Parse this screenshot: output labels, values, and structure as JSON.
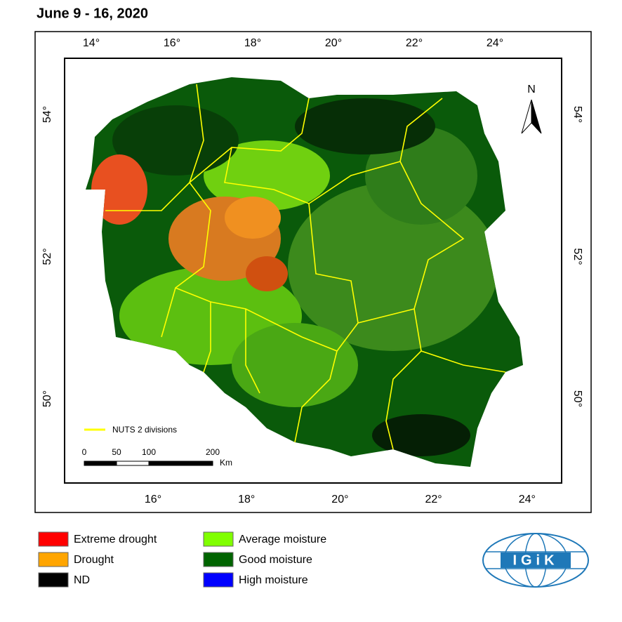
{
  "title": "June 9 - 16, 2020",
  "axes": {
    "top": [
      "14°",
      "16°",
      "18°",
      "20°",
      "22°",
      "24°"
    ],
    "bottom": [
      "16°",
      "18°",
      "20°",
      "22°",
      "24°"
    ],
    "left": [
      "54°",
      "52°",
      "50°"
    ],
    "right": [
      "54°",
      "52°",
      "50°"
    ]
  },
  "north": "N",
  "nuts_legend": "NUTS 2 divisions",
  "scale": {
    "labels": [
      "0",
      "50",
      "100",
      "200"
    ],
    "unit": "Km"
  },
  "legend": [
    {
      "label": "Extreme drought",
      "color": "#ff0000"
    },
    {
      "label": "Drought",
      "color": "#ffa500"
    },
    {
      "label": "ND",
      "color": "#000000"
    },
    {
      "label": "Average moisture",
      "color": "#80ff00"
    },
    {
      "label": "Good moisture",
      "color": "#006400"
    },
    {
      "label": "High moisture",
      "color": "#0000ff"
    }
  ],
  "logo": "IGiK"
}
